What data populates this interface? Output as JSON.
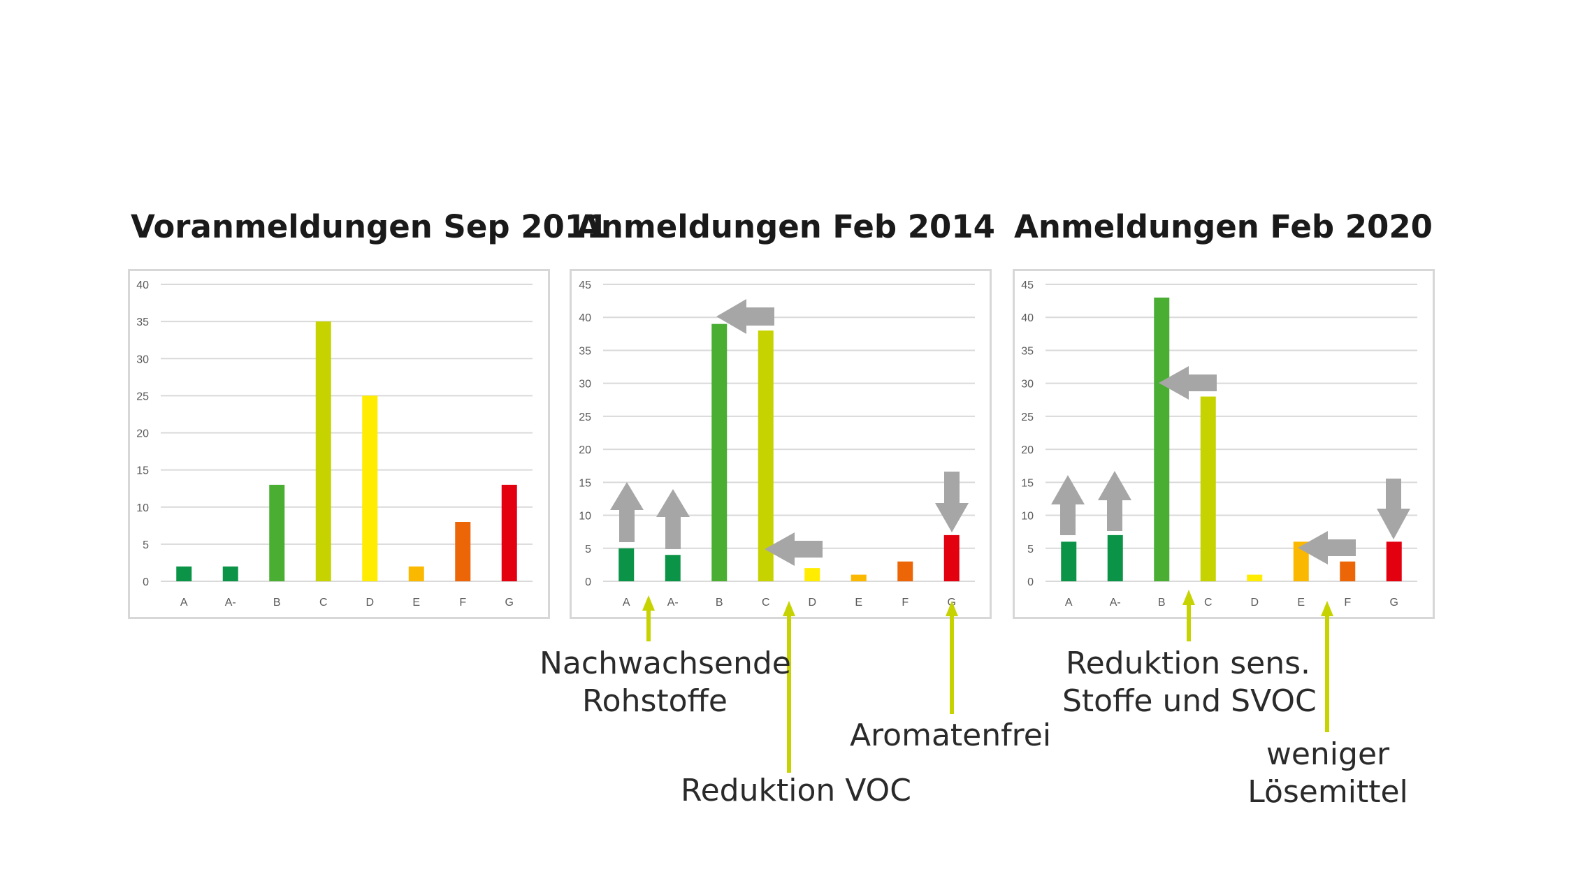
{
  "colors": {
    "A": "#0b9447",
    "A-": "#0b9447",
    "B": "#4aae33",
    "C": "#c6d300",
    "D": "#ffec00",
    "E": "#fbb800",
    "F": "#ec6608",
    "G": "#e3000f",
    "grid": "#d9d9d9",
    "axis_text": "#595959",
    "shift_arrow": "#a6a6a6",
    "annotation_arrow": "#c6d300"
  },
  "chart_data": [
    {
      "type": "bar",
      "title": "Voranmeldungen Sep 2011",
      "categories": [
        "A",
        "A-",
        "B",
        "C",
        "D",
        "E",
        "F",
        "G"
      ],
      "values": [
        2,
        2,
        13,
        35,
        25,
        2,
        8,
        13
      ],
      "ylim": [
        0,
        40
      ],
      "yticks": [
        0,
        5,
        10,
        15,
        20,
        25,
        30,
        35,
        40
      ],
      "grid": true,
      "legend": "none"
    },
    {
      "type": "bar",
      "title": "Anmeldungen Feb 2014",
      "categories": [
        "A",
        "A-",
        "B",
        "C",
        "D",
        "E",
        "F",
        "G"
      ],
      "values": [
        5,
        4,
        39,
        38,
        2,
        1,
        3,
        7
      ],
      "ylim": [
        0,
        45
      ],
      "yticks": [
        0,
        5,
        10,
        15,
        20,
        25,
        30,
        35,
        40,
        45
      ],
      "grid": true,
      "legend": "none"
    },
    {
      "type": "bar",
      "title": "Anmeldungen Feb 2020",
      "categories": [
        "A",
        "A-",
        "B",
        "C",
        "D",
        "E",
        "F",
        "G"
      ],
      "values": [
        6,
        7,
        43,
        28,
        1,
        6,
        3,
        6
      ],
      "ylim": [
        0,
        45
      ],
      "yticks": [
        0,
        5,
        10,
        15,
        20,
        25,
        30,
        35,
        40,
        45
      ],
      "grid": true,
      "legend": "none"
    }
  ],
  "annotations": {
    "nachwachsende": [
      "Nachwachsende",
      "Rohstoffe"
    ],
    "reduktion_voc": [
      "Reduktion VOC"
    ],
    "aromatenfrei": [
      "Aromatenfrei"
    ],
    "reduktion_sens": [
      "Reduktion sens.",
      "Stoffe und SVOC"
    ],
    "weniger": [
      "weniger",
      "Lösemittel"
    ]
  }
}
